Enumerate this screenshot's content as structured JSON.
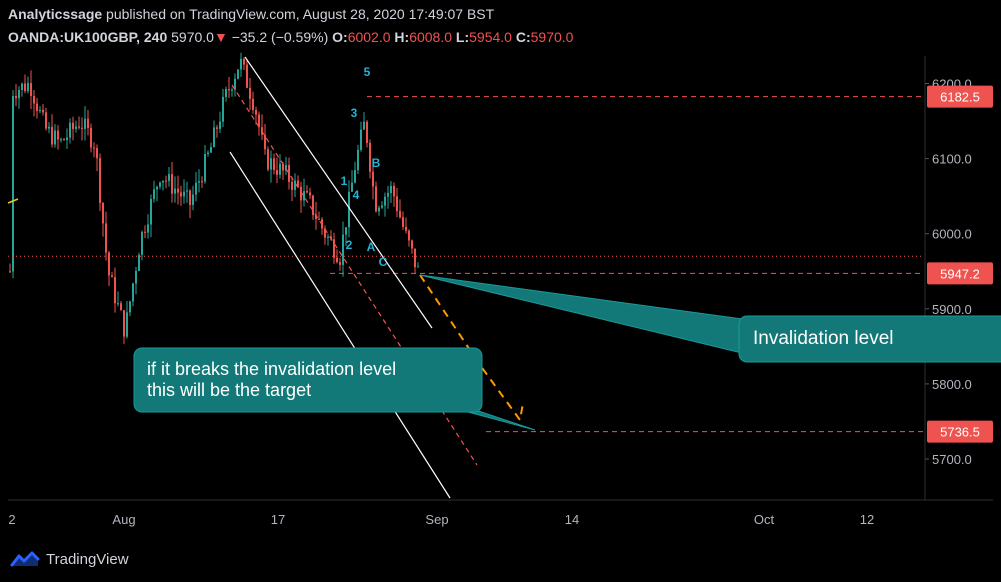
{
  "header": {
    "publisher": "Analyticssage",
    "published_text": " published on TradingView.com, August 28, 2020 17:49:07 BST",
    "symbol": "OANDA:UK100GBP, 240",
    "last": "5970.0",
    "change": "−35.2 (−0.59%)",
    "o_label": "O:",
    "o_value": "6002.0",
    "h_label": "H:",
    "h_value": "6008.0",
    "l_label": "L:",
    "l_value": "5954.0",
    "c_label": "C:",
    "c_value": "5970.0"
  },
  "colors": {
    "up": "#26a69a",
    "down": "#ef5350",
    "background": "#000000",
    "axis_text": "#b2b5be",
    "level_line": "#ef5350",
    "callout_fill": "#127878",
    "wave_label": "#22b3d6",
    "projection": "#ff9800",
    "channel": "#ffffff"
  },
  "chart_data": {
    "type": "candlestick",
    "symbol": "OANDA:UK100GBP",
    "interval": "240",
    "ylim": [
      5640,
      6230
    ],
    "y_ticks": [
      5700,
      5800,
      5900,
      6000,
      6100,
      6200
    ],
    "y_tick_labels": [
      "5700.0",
      "5800.0",
      "5900.0",
      "6000.0",
      "6100.0",
      "6200.0"
    ],
    "x_tick_labels": [
      "2",
      "Aug",
      "17",
      "Sep",
      "14",
      "Oct",
      "12"
    ],
    "price_levels": [
      {
        "label": "6182.5",
        "value": 6182.5
      },
      {
        "label": "5947.2",
        "value": 5947.2
      },
      {
        "label": "5736.5",
        "value": 5736.5
      }
    ],
    "current_price": 5970.0,
    "wave_labels": [
      "5",
      "3",
      "B",
      "1",
      "4",
      "2",
      "A",
      "C"
    ],
    "annotations": [
      {
        "text": "Invalidation level",
        "target_price": 5947.2
      },
      {
        "text_line1": "if it breaks the invalidation level",
        "text_line2": "this will be the target",
        "target_price": 5736.5
      }
    ],
    "grid": false
  },
  "footer": {
    "brand": "TradingView"
  }
}
